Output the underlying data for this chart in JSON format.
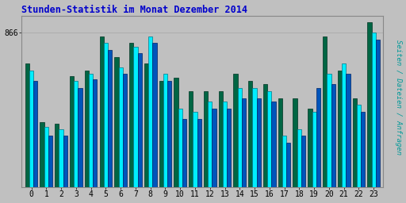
{
  "title": "Stunden-Statistik im Monat Dezember 2014",
  "ylabel": "Seiten / Dateien / Anfragen",
  "hours": [
    0,
    1,
    2,
    3,
    4,
    5,
    6,
    7,
    8,
    9,
    10,
    11,
    12,
    13,
    14,
    15,
    16,
    17,
    18,
    19,
    20,
    21,
    22,
    23
  ],
  "green_vals": [
    72,
    38,
    37,
    65,
    68,
    88,
    76,
    84,
    72,
    62,
    64,
    56,
    56,
    56,
    66,
    62,
    60,
    52,
    52,
    46,
    88,
    68,
    52,
    96
  ],
  "cyan_vals": [
    68,
    35,
    34,
    62,
    66,
    84,
    70,
    82,
    88,
    66,
    46,
    44,
    50,
    50,
    58,
    58,
    56,
    30,
    34,
    44,
    66,
    72,
    48,
    90
  ],
  "blue_vals": [
    62,
    30,
    30,
    58,
    63,
    80,
    66,
    78,
    84,
    62,
    40,
    40,
    46,
    46,
    52,
    52,
    50,
    26,
    30,
    58,
    60,
    66,
    44,
    86
  ],
  "green_color": "#006644",
  "cyan_color": "#00EEFF",
  "blue_color": "#0055BB",
  "background_color": "#C0C0C0",
  "border_color": "#888888",
  "title_color": "#0000CC",
  "ylabel_color": "#009999",
  "grid_color": "#AAAAAA",
  "ytick_val": 90,
  "ytick_label": "866",
  "ylim_max": 100,
  "bar_width": 0.28,
  "figsize": [
    5.12,
    2.56
  ],
  "dpi": 100
}
